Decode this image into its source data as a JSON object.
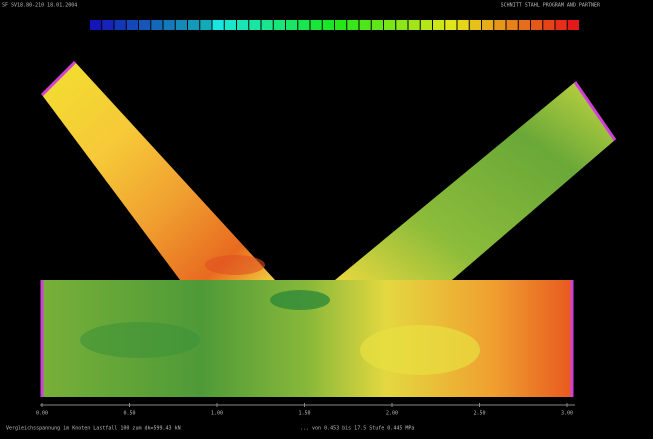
{
  "header": {
    "left": "SF SV18.80-210 18.01.2004",
    "right": "SCHNITT STAHL PROGRAM AND PARTNER"
  },
  "axis": {
    "ticks": [
      "0.00",
      "0.50",
      "1.00",
      "1.50",
      "2.00",
      "2.50",
      "3.00"
    ]
  },
  "footer": {
    "left": "Vergleichsspannung im Knoten Lastfall 100 zum dk=599.43 kN",
    "right": "... von 0.453 bis 17.5 Stufe 0.445 MPa"
  }
}
